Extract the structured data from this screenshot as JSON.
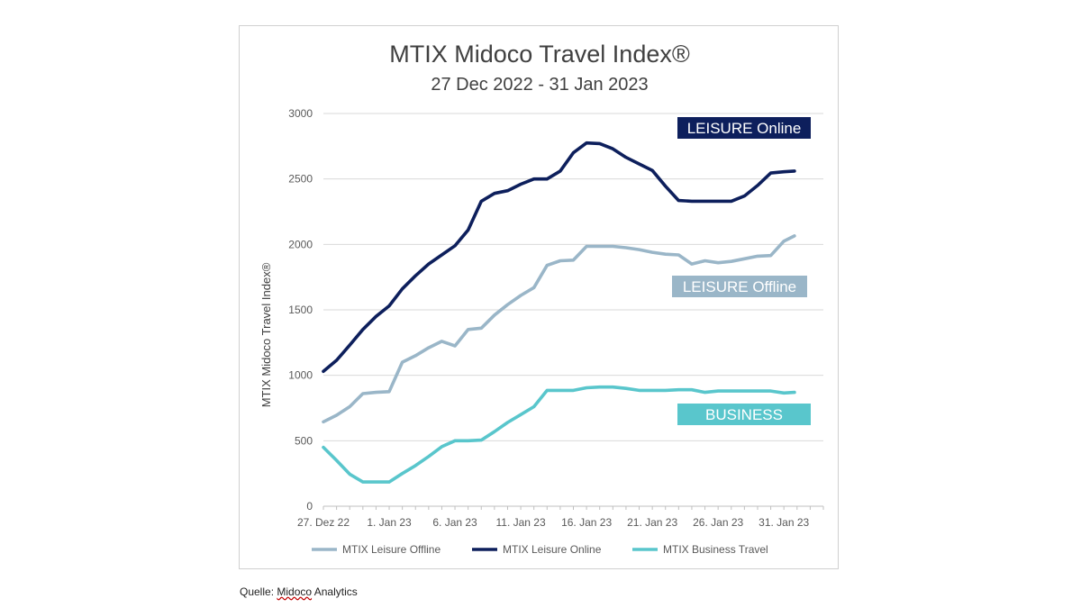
{
  "source": {
    "prefix": "Quelle: ",
    "name": "Midoco",
    "suffix": " Analytics"
  },
  "chart_data": {
    "type": "line",
    "title": "MTIX Midoco Travel Index®",
    "subtitle": "27 Dec 2022 - 31 Jan 2023",
    "ylabel": "MTIX Midoco Travel Index®",
    "xlabel": "",
    "ylim": [
      0,
      3000
    ],
    "yticks": [
      0,
      500,
      1000,
      1500,
      2000,
      2500,
      3000
    ],
    "xlim": [
      0,
      38
    ],
    "xticks": [
      {
        "x": 0,
        "label": "27. Dez 22"
      },
      {
        "x": 5,
        "label": "1. Jan 23"
      },
      {
        "x": 10,
        "label": "6. Jan 23"
      },
      {
        "x": 15,
        "label": "11. Jan 23"
      },
      {
        "x": 20,
        "label": "16. Jan 23"
      },
      {
        "x": 25,
        "label": "21. Jan 23"
      },
      {
        "x": 30,
        "label": "26. Jan 23"
      },
      {
        "x": 35,
        "label": "31. Jan 23"
      }
    ],
    "grid": true,
    "legend_position": "bottom",
    "series": [
      {
        "name": "MTIX Leisure Offline",
        "color": "#9ab6c8",
        "x": [
          0,
          1,
          2,
          3,
          4,
          5,
          6,
          7,
          8,
          9,
          10,
          11,
          12,
          13,
          14,
          15,
          16,
          17,
          18,
          19,
          20,
          21,
          22,
          23,
          24,
          25,
          26,
          27,
          28,
          29,
          30,
          31,
          32,
          33,
          34,
          35,
          35.8
        ],
        "values": [
          645,
          695,
          760,
          860,
          870,
          875,
          1100,
          1150,
          1210,
          1260,
          1225,
          1350,
          1360,
          1460,
          1540,
          1610,
          1670,
          1840,
          1875,
          1880,
          1985,
          1985,
          1985,
          1975,
          1960,
          1940,
          1925,
          1920,
          1850,
          1875,
          1860,
          1870,
          1890,
          1910,
          1915,
          2025,
          2065
        ]
      },
      {
        "name": "MTIX Leisure Online",
        "color": "#0d1f5c",
        "x": [
          0,
          1,
          2,
          3,
          4,
          5,
          6,
          7,
          8,
          9,
          10,
          11,
          12,
          13,
          14,
          15,
          16,
          17,
          18,
          19,
          20,
          21,
          22,
          23,
          24,
          25,
          26,
          27,
          28,
          29,
          30,
          31,
          32,
          33,
          34,
          35,
          35.8
        ],
        "values": [
          1030,
          1115,
          1230,
          1350,
          1450,
          1530,
          1660,
          1760,
          1850,
          1920,
          1990,
          2110,
          2330,
          2390,
          2410,
          2460,
          2500,
          2500,
          2560,
          2700,
          2775,
          2770,
          2730,
          2665,
          2615,
          2565,
          2445,
          2335,
          2330,
          2330,
          2330,
          2330,
          2370,
          2450,
          2545,
          2555,
          2560
        ]
      },
      {
        "name": "MTIX Business Travel",
        "color": "#59c6cc",
        "x": [
          0,
          1,
          2,
          3,
          4,
          5,
          6,
          7,
          8,
          9,
          10,
          11,
          12,
          13,
          14,
          15,
          16,
          17,
          18,
          19,
          20,
          21,
          22,
          23,
          24,
          25,
          26,
          27,
          28,
          29,
          30,
          31,
          32,
          33,
          34,
          35,
          35.8
        ],
        "values": [
          450,
          350,
          245,
          185,
          185,
          185,
          250,
          310,
          380,
          455,
          500,
          500,
          505,
          570,
          640,
          700,
          760,
          885,
          885,
          885,
          905,
          910,
          910,
          900,
          885,
          885,
          885,
          890,
          890,
          870,
          880,
          880,
          880,
          880,
          880,
          865,
          870
        ]
      }
    ],
    "annotations": [
      {
        "text": "LEISURE Online",
        "color": "#0d1f5c"
      },
      {
        "text": "LEISURE Offline",
        "color": "#9ab6c8"
      },
      {
        "text": "BUSINESS",
        "color": "#59c6cc"
      }
    ]
  }
}
